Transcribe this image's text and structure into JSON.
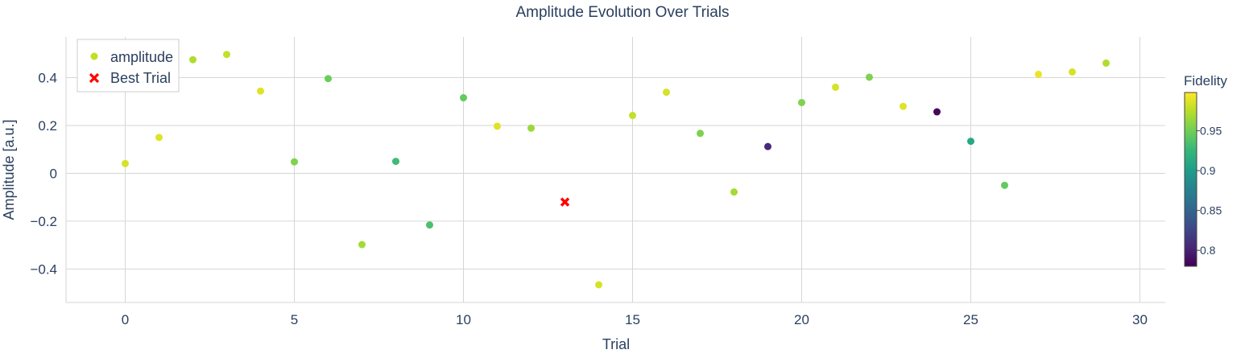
{
  "chart_data": {
    "type": "scatter",
    "title": "Amplitude Evolution Over Trials",
    "xlabel": "Trial",
    "ylabel": "Amplitude [a.u.]",
    "xlim": [
      -1.75,
      30.75
    ],
    "ylim": [
      -0.54,
      0.57
    ],
    "xticks": [
      0,
      5,
      10,
      15,
      20,
      25,
      30
    ],
    "yticks": [
      -0.4,
      -0.2,
      0,
      0.2,
      0.4
    ],
    "xtick_labels": [
      "0",
      "5",
      "10",
      "15",
      "20",
      "25",
      "30"
    ],
    "ytick_labels": [
      "−0.4",
      "−0.2",
      "0",
      "0.2",
      "0.4"
    ],
    "grid": true,
    "legend": {
      "placement": "top-left",
      "entries": [
        {
          "label": "amplitude",
          "marker": "circle",
          "color": "#c0df25"
        },
        {
          "label": "Best Trial",
          "marker": "x",
          "color": "#ff0000"
        }
      ]
    },
    "colorbar": {
      "title": "Fidelity",
      "range": [
        0.78,
        0.998
      ],
      "ticks": [
        0.8,
        0.85,
        0.9,
        0.95
      ],
      "tick_labels": [
        "0.8",
        "0.85",
        "0.9",
        "0.95"
      ],
      "colorscale": [
        "#440154",
        "#482878",
        "#3e4989",
        "#31688e",
        "#26828e",
        "#1f9e89",
        "#35b779",
        "#6ece58",
        "#b5de2b",
        "#fde725"
      ]
    },
    "series": [
      {
        "name": "amplitude",
        "x": [
          0,
          1,
          2,
          3,
          4,
          5,
          6,
          7,
          8,
          9,
          10,
          11,
          12,
          14,
          15,
          16,
          17,
          18,
          19,
          20,
          21,
          22,
          23,
          24,
          25,
          26,
          27,
          28,
          29
        ],
        "y": [
          0.041,
          0.15,
          0.475,
          0.497,
          0.344,
          0.048,
          0.396,
          -0.298,
          0.05,
          -0.216,
          0.316,
          0.197,
          0.189,
          -0.466,
          0.242,
          0.339,
          0.167,
          -0.078,
          0.112,
          0.296,
          0.36,
          0.402,
          0.28,
          0.257,
          0.134,
          -0.05,
          0.414,
          0.424,
          0.461
        ],
        "fidelity": [
          0.985,
          0.988,
          0.972,
          0.978,
          0.988,
          0.955,
          0.948,
          0.968,
          0.93,
          0.935,
          0.945,
          0.988,
          0.965,
          0.985,
          0.978,
          0.985,
          0.955,
          0.968,
          0.805,
          0.955,
          0.985,
          0.955,
          0.988,
          0.785,
          0.91,
          0.945,
          0.992,
          0.985,
          0.972
        ]
      },
      {
        "name": "Best Trial",
        "x": [
          13
        ],
        "y": [
          -0.12
        ],
        "color": "#ff0000"
      }
    ]
  }
}
